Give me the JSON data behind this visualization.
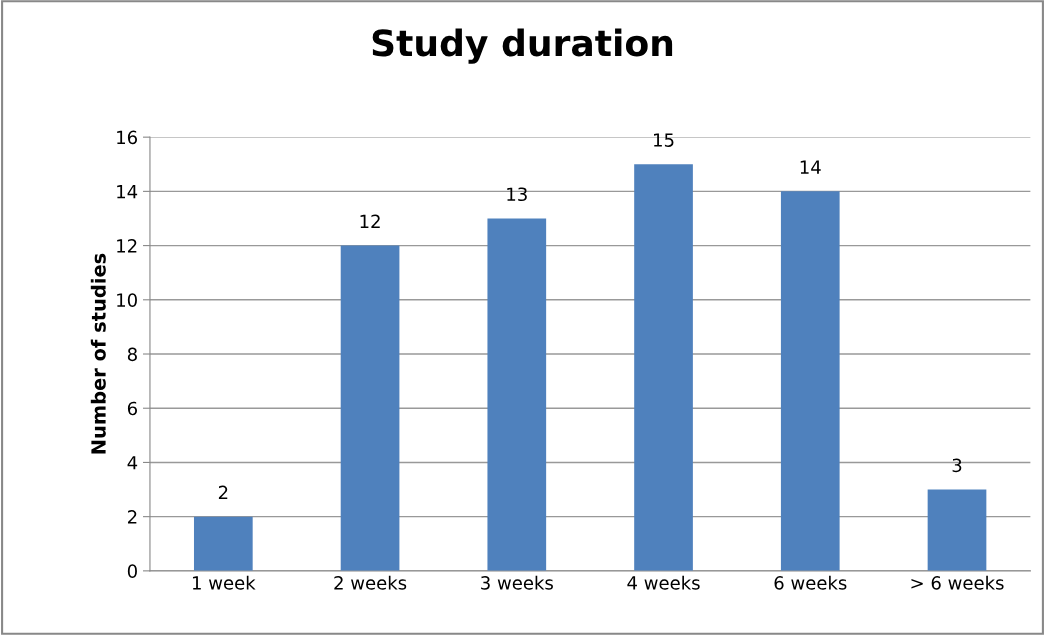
{
  "chart_data": {
    "type": "bar",
    "title": "Study duration",
    "ylabel": "Number of studies",
    "categories": [
      "1 week",
      "2 weeks",
      "3 weeks",
      "4 weeks",
      "6 weeks",
      "> 6 weeks"
    ],
    "values": [
      2,
      12,
      13,
      15,
      14,
      3
    ],
    "color": "#4f81bd",
    "ylim": [
      0,
      16
    ],
    "yticks": [
      0,
      2,
      4,
      6,
      8,
      10,
      12,
      14,
      16
    ],
    "grid": "y",
    "data_labels": true,
    "legend": false
  }
}
